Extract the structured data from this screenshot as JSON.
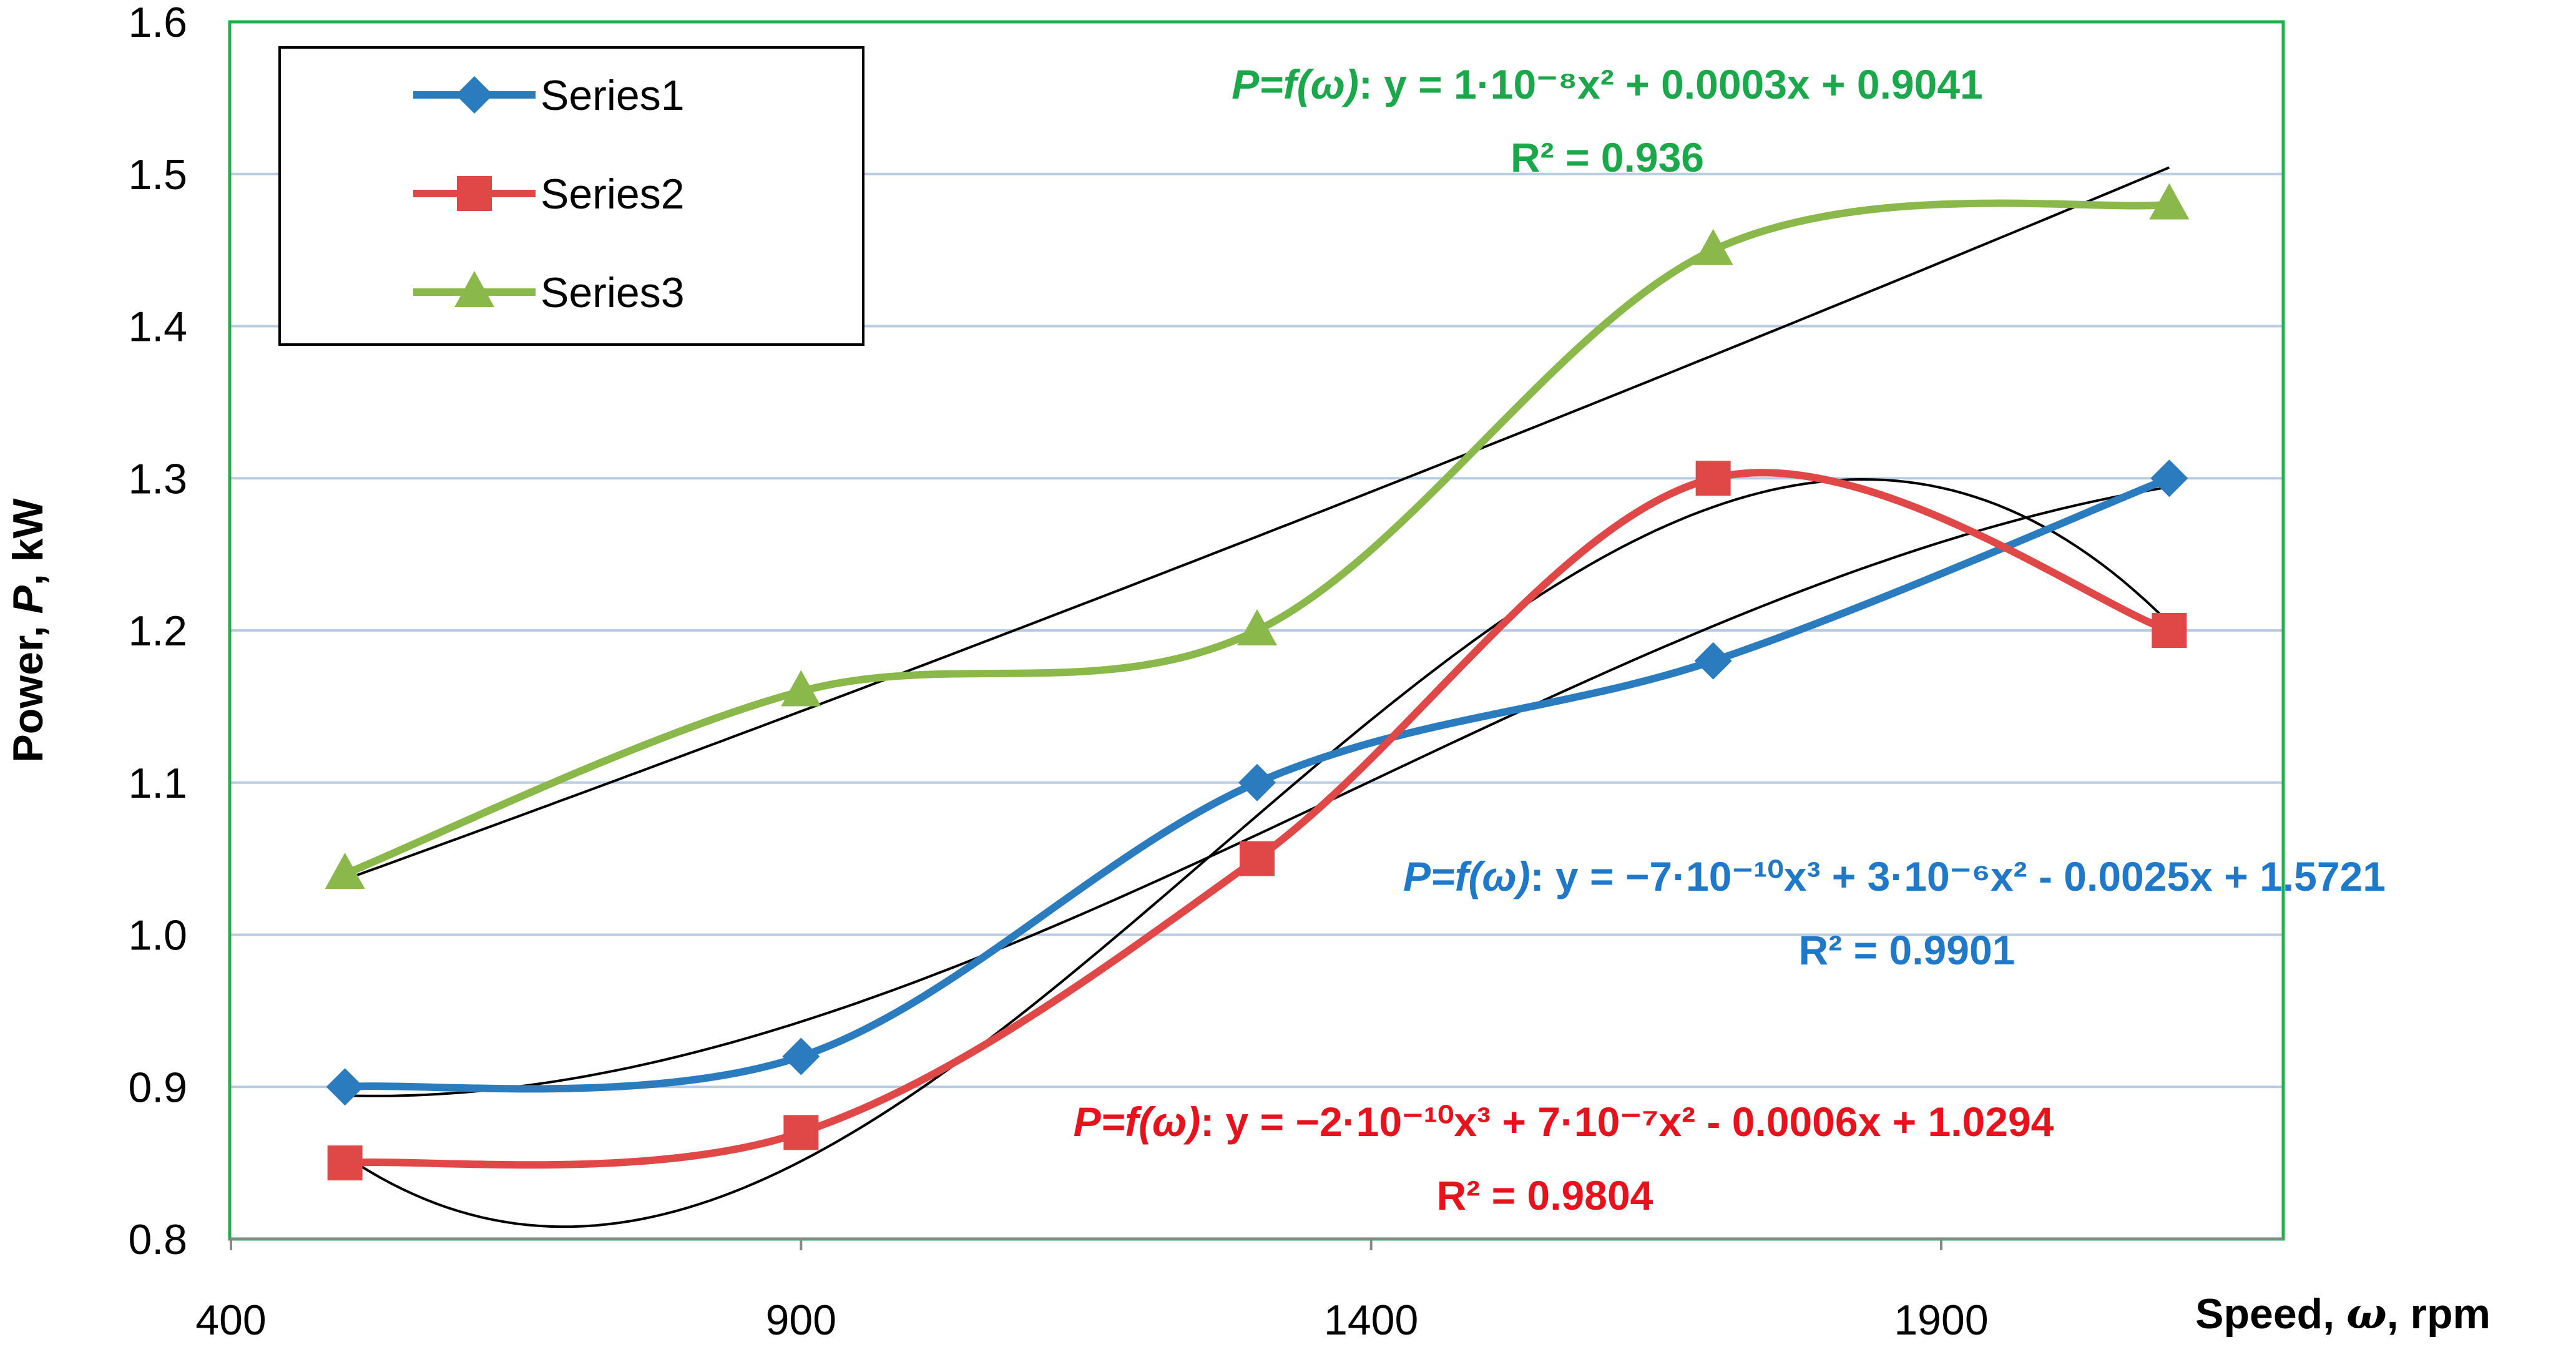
{
  "chart_data": {
    "type": "line",
    "title": "",
    "xlabel_prefix": "Speed, ",
    "xlabel_symbol": "ω",
    "xlabel_suffix": ", rpm",
    "ylabel_prefix": "Power, ",
    "ylabel_symbol": "P",
    "ylabel_suffix": ", kW",
    "xlim": [
      400,
      2200
    ],
    "ylim": [
      0.8,
      1.6
    ],
    "xticks": [
      "400",
      "900",
      "1400",
      "1900"
    ],
    "yticks": [
      "0.8",
      "0.9",
      "1.0",
      "1.1",
      "1.2",
      "1.3",
      "1.4",
      "1.5",
      "1.6"
    ],
    "x": [
      500,
      900,
      1300,
      1700,
      2100
    ],
    "series": [
      {
        "name": "Series1",
        "color": "#2b7bbf",
        "marker": "diamond",
        "values": [
          0.9,
          0.92,
          1.1,
          1.18,
          1.3
        ]
      },
      {
        "name": "Series2",
        "color": "#e04848",
        "marker": "square",
        "values": [
          0.85,
          0.87,
          1.05,
          1.3,
          1.2
        ]
      },
      {
        "name": "Series3",
        "color": "#8ab84a",
        "marker": "triangle",
        "values": [
          1.04,
          1.16,
          1.2,
          1.45,
          1.48
        ]
      }
    ],
    "annotations": [
      {
        "series": "Series3",
        "color": "#1aa84a",
        "equation_lead": "P=f(ω)",
        "equation_rest": ": y = 1·10⁻⁸x² + 0.0003x + 0.9041",
        "r2": "R² = 0.936"
      },
      {
        "series": "Series1",
        "color": "#1f78c8",
        "equation_lead": "P=f(ω)",
        "equation_rest": ": y = −7·10⁻¹⁰x³ + 3·10⁻⁶x² - 0.0025x + 1.5721",
        "r2": "R² = 0.9901"
      },
      {
        "series": "Series2",
        "color": "#e8121c",
        "equation_lead": "P=f(ω)",
        "equation_rest": ": y = −2·10⁻¹⁰x³ + 7·10⁻⁷x² - 0.0006x + 1.0294",
        "r2": "R² = 0.9804"
      }
    ],
    "grid": true,
    "legend_position": "top-left",
    "border_color": "#22b04a",
    "grid_color": "#b8cce4"
  }
}
